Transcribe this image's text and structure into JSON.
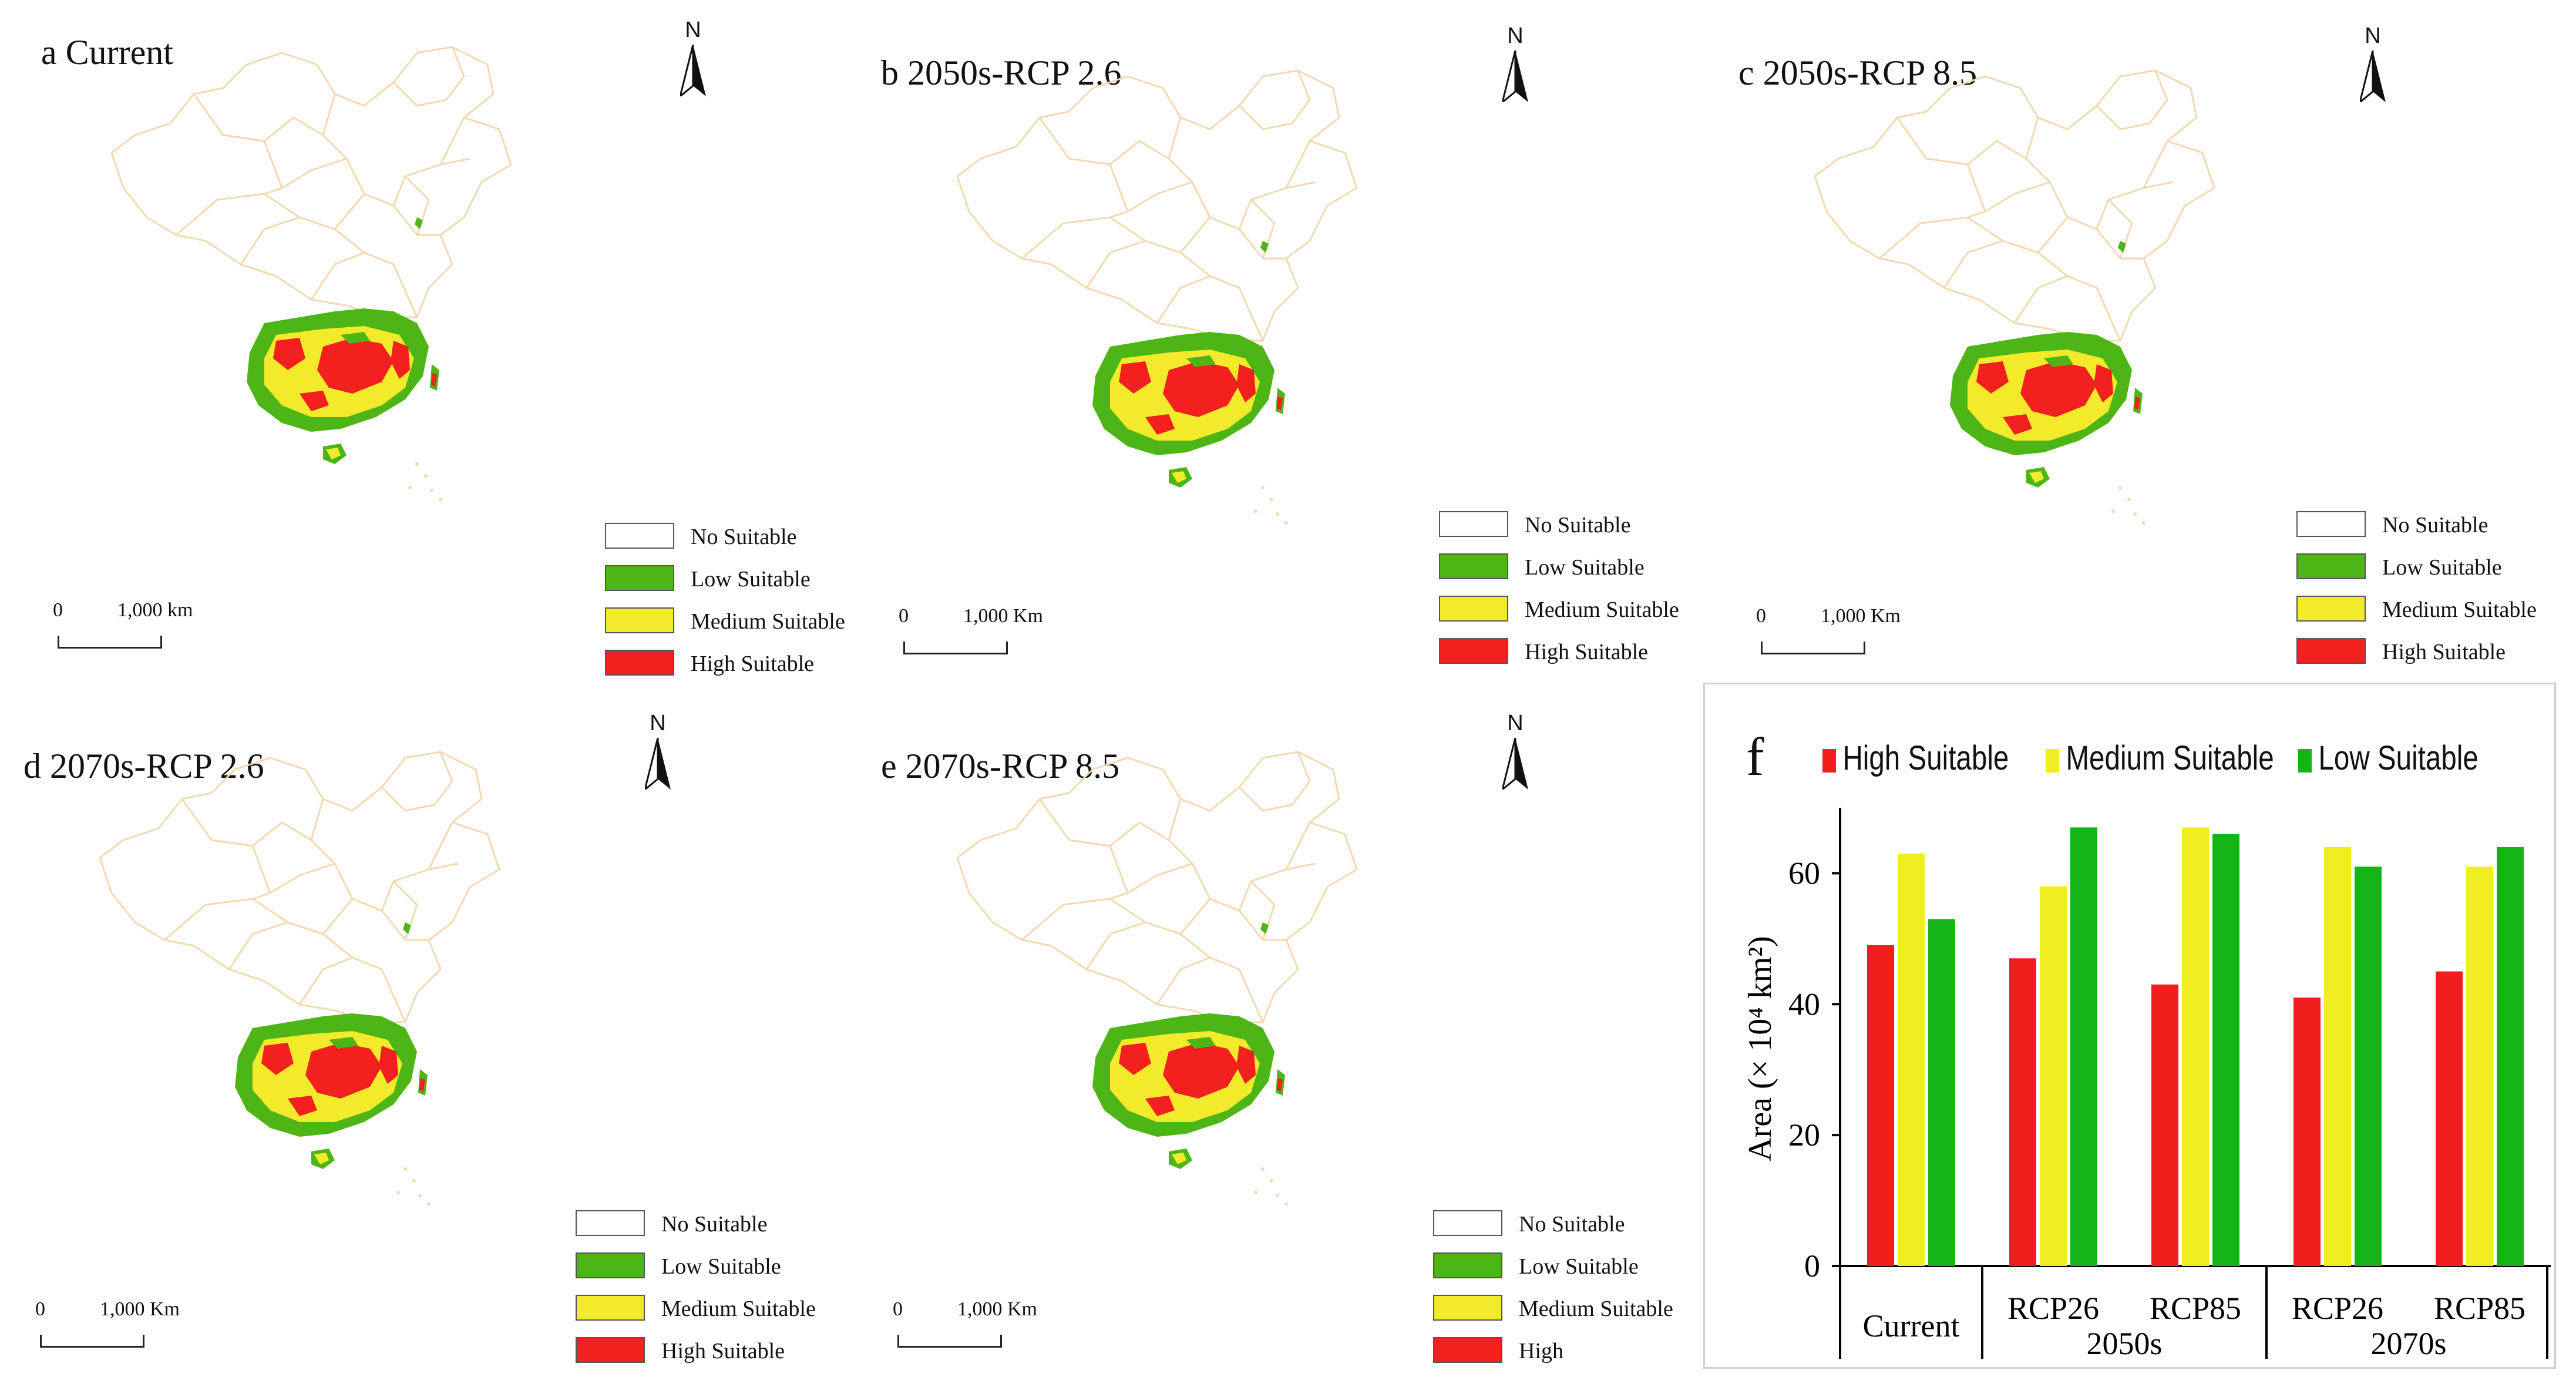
{
  "maps": [
    {
      "title": "a Current",
      "scale_zero": "0",
      "scale_dist": "1,000 km",
      "legend": [
        "No Suitable",
        "Low Suitable",
        "Medium Suitable",
        "High Suitable"
      ]
    },
    {
      "title": "b 2050s-RCP 2.6",
      "scale_zero": "0",
      "scale_dist": "1,000 Km",
      "legend": [
        "No Suitable",
        "Low Suitable",
        "Medium Suitable",
        "High Suitable"
      ]
    },
    {
      "title": "c 2050s-RCP 8.5",
      "scale_zero": "0",
      "scale_dist": "1,000 Km",
      "legend": [
        "No Suitable",
        "Low Suitable",
        "Medium Suitable",
        "High Suitable"
      ]
    },
    {
      "title": "d 2070s-RCP 2.6",
      "scale_zero": "0",
      "scale_dist": "1,000 Km",
      "legend": [
        "No Suitable",
        "Low Suitable",
        "Medium Suitable",
        "High Suitable"
      ]
    },
    {
      "title": "e 2070s-RCP 8.5",
      "scale_zero": "0",
      "scale_dist": "1,000 Km",
      "legend": [
        "No Suitable",
        "Low Suitable",
        "Medium Suitable",
        "High"
      ]
    }
  ],
  "north_label": "N",
  "legend_colors": [
    "#ffffff",
    "#4db516",
    "#f2ea2a",
    "#f2201e"
  ],
  "chart_data": {
    "type": "bar",
    "panel_letter": "f",
    "ylabel": "Area (× 10⁴ km²)",
    "ylim": [
      0,
      70
    ],
    "yticks": [
      0,
      20,
      40,
      60
    ],
    "categories": [
      "Current",
      "RCP26",
      "RCP85",
      "RCP26",
      "RCP85"
    ],
    "groups": [
      {
        "label": "2050s",
        "members": [
          1,
          2
        ]
      },
      {
        "label": "2070s",
        "members": [
          3,
          4
        ]
      }
    ],
    "series": [
      {
        "name": "High Suitable",
        "color": "#f21d1d",
        "values": [
          49,
          47,
          43,
          41,
          45
        ]
      },
      {
        "name": "Medium Suitable",
        "color": "#eeee22",
        "values": [
          63,
          58,
          67,
          64,
          61
        ]
      },
      {
        "name": "Low Suitable",
        "color": "#15b415",
        "values": [
          53,
          67,
          66,
          61,
          64
        ]
      }
    ]
  }
}
